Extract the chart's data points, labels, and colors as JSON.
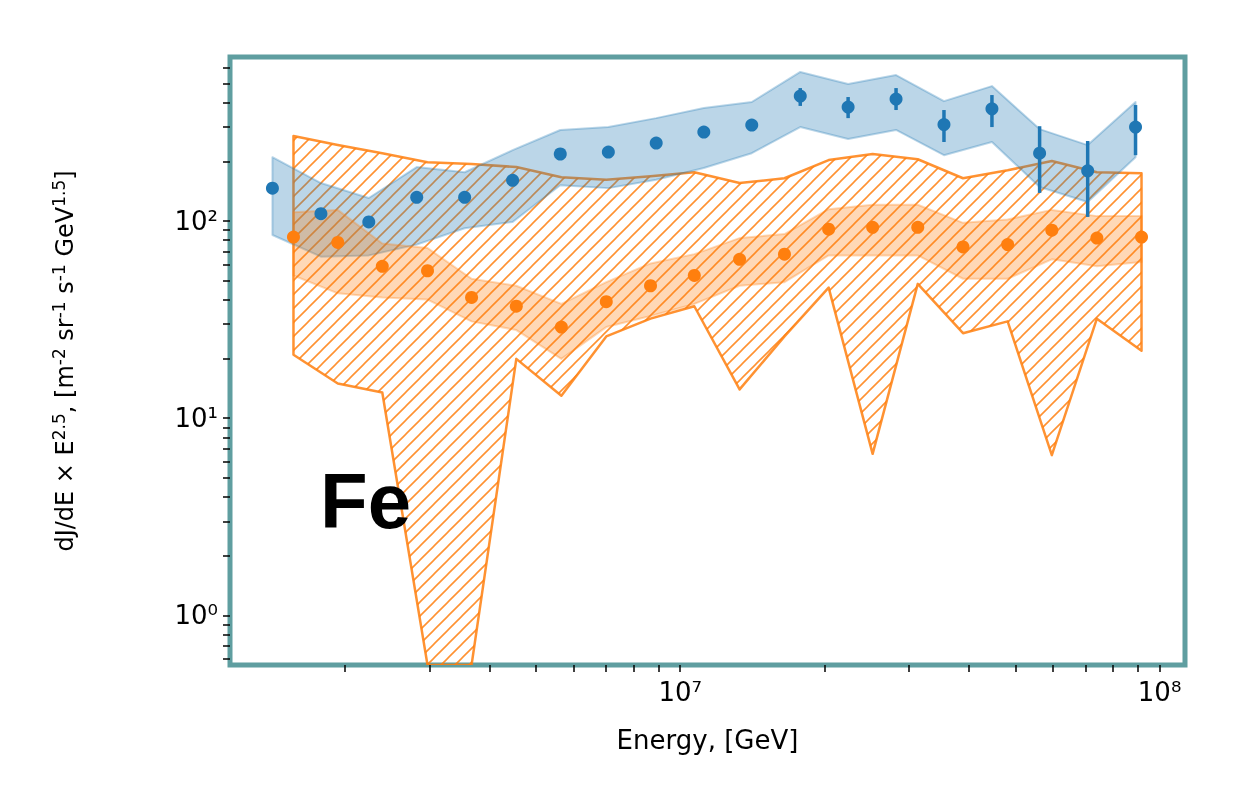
{
  "chart_data": {
    "type": "scatter",
    "xlabel": "Energy, [GeV]",
    "ylabel": "dJ/dE × E$^{2.5}$, [m$^{-2}$ sr$^{-1}$ s$^{-1}$ GeV$^{1.5}$]",
    "annotations": [
      "Fe"
    ],
    "log": "xy",
    "marker": "circle",
    "xlim": [
      1150000,
      113000000
    ],
    "ylim": [
      0.56,
      680
    ],
    "xticks": [
      {
        "value": 2000000,
        "label": null
      },
      {
        "value": 3000000,
        "label": null
      },
      {
        "value": 4000000,
        "label": null
      },
      {
        "value": 5000000,
        "label": null
      },
      {
        "value": 6000000,
        "label": null
      },
      {
        "value": 7000000,
        "label": null
      },
      {
        "value": 8000000,
        "label": null
      },
      {
        "value": 9000000,
        "label": null
      },
      {
        "value": 10000000,
        "label": "10⁷"
      },
      {
        "value": 20000000,
        "label": null
      },
      {
        "value": 30000000,
        "label": null
      },
      {
        "value": 40000000,
        "label": null
      },
      {
        "value": 50000000,
        "label": null
      },
      {
        "value": 60000000,
        "label": null
      },
      {
        "value": 70000000,
        "label": null
      },
      {
        "value": 80000000,
        "label": null
      },
      {
        "value": 90000000,
        "label": null
      },
      {
        "value": 100000000,
        "label": "10⁸"
      }
    ],
    "yticks": [
      {
        "value": 0.6,
        "label": null
      },
      {
        "value": 0.7,
        "label": null
      },
      {
        "value": 0.8,
        "label": null
      },
      {
        "value": 0.9,
        "label": null
      },
      {
        "value": 1,
        "label": "10⁰"
      },
      {
        "value": 2,
        "label": null
      },
      {
        "value": 3,
        "label": null
      },
      {
        "value": 4,
        "label": null
      },
      {
        "value": 5,
        "label": null
      },
      {
        "value": 6,
        "label": null
      },
      {
        "value": 7,
        "label": null
      },
      {
        "value": 8,
        "label": null
      },
      {
        "value": 9,
        "label": null
      },
      {
        "value": 10,
        "label": "10¹"
      },
      {
        "value": 20,
        "label": null
      },
      {
        "value": 30,
        "label": null
      },
      {
        "value": 40,
        "label": null
      },
      {
        "value": 50,
        "label": null
      },
      {
        "value": 60,
        "label": null
      },
      {
        "value": 70,
        "label": null
      },
      {
        "value": 80,
        "label": null
      },
      {
        "value": 90,
        "label": null
      },
      {
        "value": 100,
        "label": "10²"
      },
      {
        "value": 200,
        "label": null
      },
      {
        "value": 300,
        "label": null
      },
      {
        "value": 400,
        "label": null
      },
      {
        "value": 500,
        "label": null
      },
      {
        "value": 600,
        "label": null
      }
    ],
    "series": [
      {
        "type": "area",
        "color": "#ff7f0e",
        "x": [
          1560000,
          1930000,
          2390000,
          2970000,
          3670000,
          4550000,
          5650000,
          7010000,
          8670000,
          10700000,
          13300000,
          16500000,
          20400000,
          25200000,
          31300000,
          38900000,
          48200000,
          59600000,
          74000000,
          91700000
        ],
        "values": [
          null,
          null,
          null,
          null,
          null,
          null,
          null,
          null,
          null,
          null,
          null,
          null,
          null,
          null,
          null,
          null,
          null,
          null,
          null,
          null
        ],
        "upper": [
          270,
          243,
          221,
          199,
          195,
          188,
          167,
          162,
          169,
          177,
          156,
          165,
          204,
          219,
          206,
          165,
          181,
          202,
          177,
          175
        ],
        "lower": [
          21,
          15,
          13.5,
          0.56,
          0.56,
          20,
          13,
          26,
          32,
          37,
          14,
          26,
          46,
          6.6,
          48,
          27,
          31,
          6.5,
          32,
          22
        ]
      },
      {
        "color": "#1f77b4",
        "x": [
          1410000,
          1780000,
          2240000,
          2820000,
          3550000,
          4470000,
          5620000,
          7080000,
          8910000,
          11200000,
          14100000,
          17800000,
          22400000,
          28200000,
          35500000,
          44700000,
          56200000,
          70800000,
          89100000
        ],
        "values": [
          147,
          109,
          99,
          132,
          132,
          161,
          219,
          224,
          249,
          283,
          307,
          431,
          379,
          416,
          309,
          371,
          221,
          180,
          300
        ],
        "errors": [
          null,
          null,
          null,
          null,
          null,
          null,
          null,
          null,
          null,
          null,
          null,
          [
            384,
            473
          ],
          [
            333,
            426
          ],
          [
            366,
            473
          ],
          [
            252,
            366
          ],
          [
            300,
            436
          ],
          [
            139,
            303
          ],
          [
            105,
            255
          ],
          [
            216,
            388
          ]
        ],
        "upper": [
          211,
          156,
          131,
          188,
          177,
          229,
          290,
          300,
          333,
          375,
          402,
          571,
          496,
          551,
          406,
          484,
          293,
          243,
          402
        ],
        "lower": [
          85,
          66,
          67,
          76,
          92,
          99,
          152,
          147,
          162,
          186,
          221,
          300,
          261,
          290,
          216,
          252,
          149,
          125,
          211
        ]
      },
      {
        "color": "#ff7f0e",
        "x": [
          1560000,
          1930000,
          2390000,
          2970000,
          3670000,
          4550000,
          5650000,
          7010000,
          8670000,
          10700000,
          13300000,
          16500000,
          20400000,
          25200000,
          31300000,
          38900000,
          48200000,
          59600000,
          74000000,
          91700000
        ],
        "values": [
          83,
          78,
          59,
          56,
          41,
          37,
          29,
          39,
          47,
          53,
          64,
          68,
          91,
          93,
          93,
          74,
          76,
          90,
          82,
          83
        ],
        "upper": [
          111,
          114,
          77,
          73,
          51,
          47,
          38,
          49,
          61,
          68,
          82,
          86,
          115,
          121,
          121,
          98,
          102,
          114,
          106,
          106
        ],
        "lower": [
          53,
          43,
          41,
          40,
          31,
          28,
          20,
          29,
          33,
          38,
          47,
          49,
          67,
          67,
          67,
          51,
          51,
          64,
          59,
          62
        ]
      }
    ]
  }
}
